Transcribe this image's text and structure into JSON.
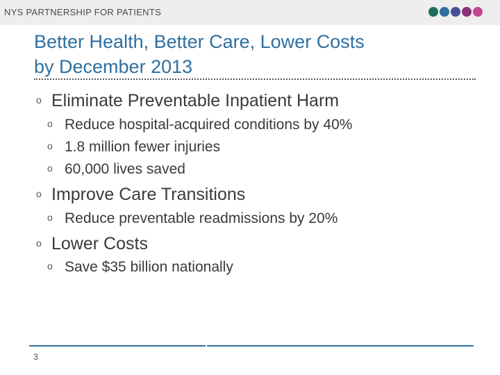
{
  "header": {
    "org_name": "NYS PARTNERSHIP FOR PATIENTS",
    "logo_dot_colors": [
      "#1b6e5b",
      "#2e6ea0",
      "#4a4f96",
      "#8a2f7a",
      "#c0478f"
    ]
  },
  "slide": {
    "title_line1": "Better Health, Better Care, Lower Costs",
    "title_line2": "by December 2013",
    "bullet_marker": "o",
    "bullets": [
      {
        "text": "Eliminate Preventable Inpatient Harm",
        "sub": [
          "Reduce hospital-acquired conditions by 40%",
          "1.8 million fewer injuries",
          "60,000 lives saved"
        ]
      },
      {
        "text": "Improve Care Transitions",
        "sub": [
          "Reduce preventable readmissions by 20%"
        ]
      },
      {
        "text": "Lower Costs",
        "sub": [
          "Save $35 billion nationally"
        ]
      }
    ],
    "page_number": "3"
  },
  "colors": {
    "title": "#2f6f9f",
    "rule": "#2f6f9f"
  }
}
